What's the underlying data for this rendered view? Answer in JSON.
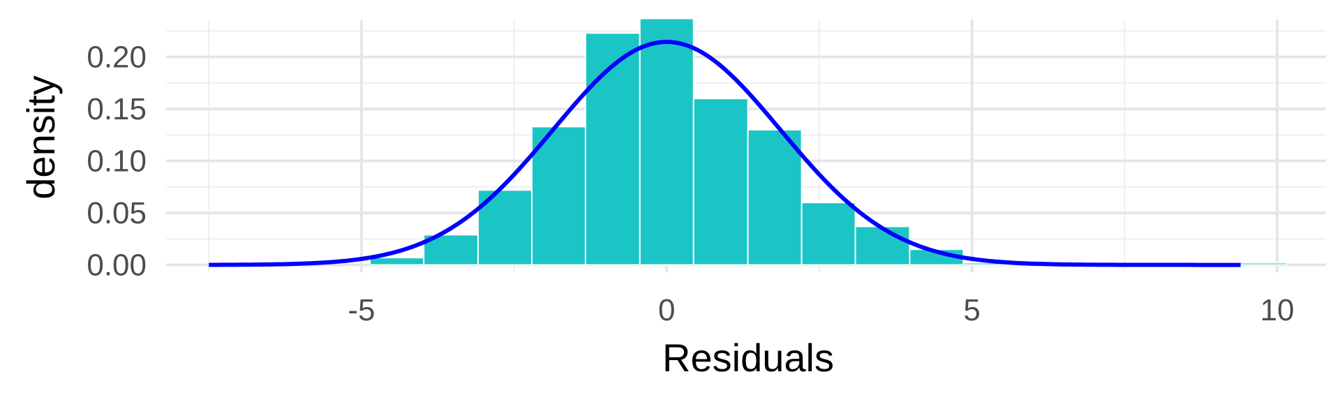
{
  "chart_data": {
    "type": "histogram",
    "xlabel": "Residuals",
    "ylabel": "density",
    "xlim": [
      -8.2,
      10.8
    ],
    "ylim": [
      -0.007,
      0.236
    ],
    "x_ticks": [
      -5,
      0,
      5,
      10
    ],
    "x_tick_labels": [
      "-5",
      "0",
      "5",
      "10"
    ],
    "y_ticks": [
      0.0,
      0.05,
      0.1,
      0.15,
      0.2
    ],
    "y_tick_labels": [
      "0.00",
      "0.05",
      "0.10",
      "0.15",
      "0.20"
    ],
    "grid": true,
    "legend": "none",
    "bins": [
      {
        "x0": -4.86,
        "x1": -3.98,
        "density": 0.007
      },
      {
        "x0": -3.98,
        "x1": -3.09,
        "density": 0.029
      },
      {
        "x0": -3.09,
        "x1": -2.21,
        "density": 0.072
      },
      {
        "x0": -2.21,
        "x1": -1.33,
        "density": 0.133
      },
      {
        "x0": -1.33,
        "x1": -0.44,
        "density": 0.223
      },
      {
        "x0": -0.44,
        "x1": 0.44,
        "density": 0.237
      },
      {
        "x0": 0.44,
        "x1": 1.33,
        "density": 0.16
      },
      {
        "x0": 1.33,
        "x1": 2.21,
        "density": 0.13
      },
      {
        "x0": 2.21,
        "x1": 3.09,
        "density": 0.06
      },
      {
        "x0": 3.09,
        "x1": 3.98,
        "density": 0.037
      },
      {
        "x0": 3.98,
        "x1": 4.86,
        "density": 0.015
      },
      {
        "x0": 4.86,
        "x1": 5.74,
        "density": 0.002
      },
      {
        "x0": 5.74,
        "x1": 6.62,
        "density": 0.0
      },
      {
        "x0": 6.62,
        "x1": 7.51,
        "density": 0.0
      },
      {
        "x0": 7.51,
        "x1": 8.39,
        "density": 0.0
      },
      {
        "x0": 8.39,
        "x1": 9.27,
        "density": 0.0
      },
      {
        "x0": 9.27,
        "x1": 10.16,
        "density": 0.002
      }
    ],
    "density_curve": {
      "distribution": "normal",
      "mean": 0.0,
      "sd": 1.86,
      "x_range": [
        -7.5,
        9.4
      ]
    },
    "colors": {
      "bar_fill": "#1cc5c5",
      "bar_outline": "#ffffff",
      "curve": "#0000ff",
      "grid_major": "#e6e6e6",
      "grid_minor": "#efefef"
    }
  }
}
